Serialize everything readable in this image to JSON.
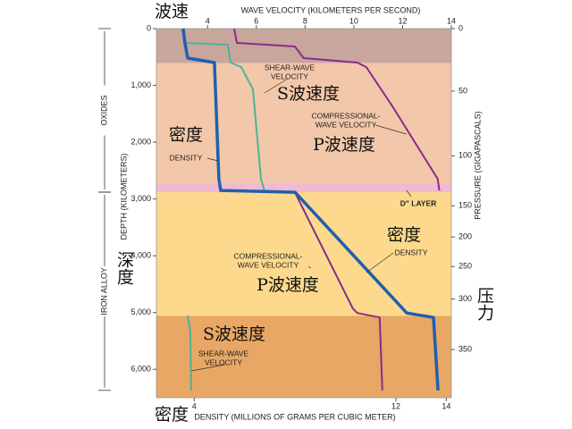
{
  "chart_data": {
    "type": "profile",
    "x_title": "WAVE VELOCITY (KILOMETERS PER SECOND)",
    "x2_title": "DENSITY (MILLIONS OF GRAMS PER CUBIC METER)",
    "y_title": "DEPTH (KILOMETERS)",
    "y2_title": "PRESSURE (GIGAPASCALS)",
    "x_title_cn": "波速",
    "x2_title_cn": "密度",
    "y_title_cn": "深度",
    "y2_title_cn": "压力",
    "xlim": [
      1.9,
      14
    ],
    "xticks": [
      4,
      6,
      8,
      10,
      12,
      14
    ],
    "x2lim": [
      2.5,
      14.2
    ],
    "x2ticks": [
      4,
      12,
      14
    ],
    "ylim": [
      0,
      6500
    ],
    "yticks": [
      {
        "value": 0,
        "label": "0"
      },
      {
        "value": 1000,
        "label": "1,000"
      },
      {
        "value": 2000,
        "label": "2,000"
      },
      {
        "value": 3000,
        "label": "3,000"
      },
      {
        "value": 4000,
        "label": "4,000"
      },
      {
        "value": 5000,
        "label": "5,000"
      },
      {
        "value": 6000,
        "label": "6,000"
      }
    ],
    "pressure_ticks": [
      {
        "value": 0,
        "depth": 0
      },
      {
        "value": 50,
        "depth": 1100
      },
      {
        "value": 100,
        "depth": 2240
      },
      {
        "value": 150,
        "depth": 3120
      },
      {
        "value": 200,
        "depth": 3670
      },
      {
        "value": 250,
        "depth": 4190
      },
      {
        "value": 300,
        "depth": 4760
      },
      {
        "value": 350,
        "depth": 5650
      }
    ],
    "layers": [
      {
        "top": 0,
        "bottom": 610,
        "color": "#c9a69c"
      },
      {
        "top": 610,
        "bottom": 2720,
        "color": "#f3c7a9"
      },
      {
        "top": 2720,
        "bottom": 2880,
        "color": "#f2b9d2"
      },
      {
        "top": 2880,
        "bottom": 5060,
        "color": "#fcd98c"
      },
      {
        "top": 5060,
        "bottom": 6500,
        "color": "#e8a764"
      }
    ],
    "regions": [
      {
        "name": "OXIDES",
        "top": 0,
        "bottom": 2880
      },
      {
        "name": "IRON ALLOY",
        "top": 2880,
        "bottom": 6371
      }
    ],
    "series": [
      {
        "name": "SHEAR-WAVE VELOCITY",
        "color": "#4db39a",
        "axis": "x",
        "values": [
          3.0,
          3.04,
          4.83,
          4.94,
          5.38,
          5.86,
          6.19,
          6.33,
          null,
          3.18,
          3.29,
          3.33
        ],
        "depth": [
          0,
          252,
          283,
          598,
          677,
          1071,
          2646,
          2850,
          null,
          5055,
          5323,
          6371
        ]
      },
      {
        "name": "COMPRESSIONAL-WAVE VELOCITY",
        "color": "#8a2b8c",
        "axis": "x",
        "values": [
          5.09,
          5.2,
          7.58,
          7.94,
          10.14,
          10.51,
          11.61,
          13.44,
          13.51,
          null,
          7.58,
          9.96,
          10.14,
          11.06,
          11.17
        ],
        "depth": [
          0,
          252,
          315,
          520,
          598,
          677,
          1386,
          2646,
          2850,
          null,
          2882,
          4929,
          5008,
          5087,
          6371
        ]
      },
      {
        "name": "DENSITY",
        "color": "#1f5fb0",
        "axis": "x2",
        "values": [
          3.56,
          3.63,
          3.74,
          4.8,
          4.98,
          5.05,
          8.0,
          12.43,
          13.49,
          13.67
        ],
        "depth": [
          0,
          252,
          520,
          598,
          2646,
          2850,
          2882,
          5008,
          5087,
          6371
        ]
      }
    ],
    "annotations": [
      {
        "lines": [
          "SHEAR-WAVE",
          "VELOCITY"
        ]
      },
      {
        "lines": [
          "S波速度"
        ]
      },
      {
        "lines": [
          "COMPRESSIONAL-",
          "WAVE VELOCITY"
        ]
      },
      {
        "lines": [
          "P波速度"
        ]
      },
      {
        "lines": [
          "密度"
        ]
      },
      {
        "lines": [
          "DENSITY"
        ]
      },
      {
        "lines": [
          "D\" LAYER"
        ]
      },
      {
        "lines": [
          "密度"
        ]
      },
      {
        "lines": [
          "DENSITY"
        ]
      },
      {
        "lines": [
          "COMPRESSIONAL-",
          "WAVE VELOCITY"
        ]
      },
      {
        "lines": [
          "P波速度"
        ]
      },
      {
        "lines": [
          "S波速度"
        ]
      },
      {
        "lines": [
          "SHEAR-WAVE",
          "VELOCITY"
        ]
      }
    ]
  }
}
